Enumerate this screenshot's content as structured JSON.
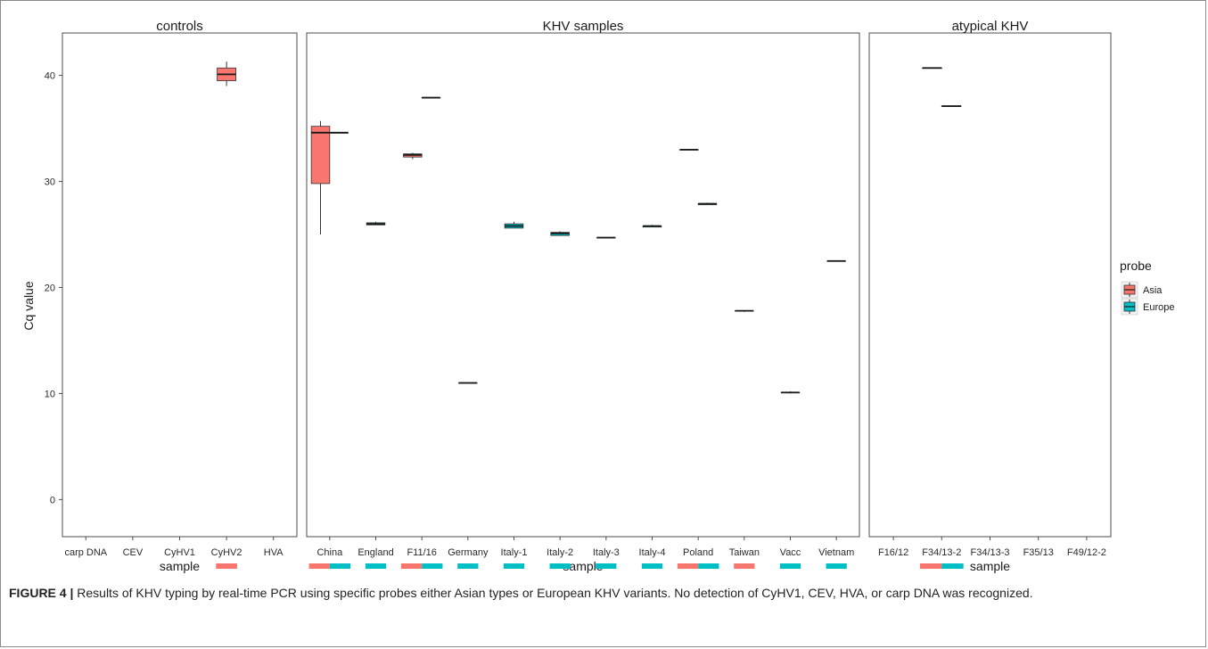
{
  "figure": {
    "caption_label": "FIGURE 4 |",
    "caption_text": " Results of KHV typing by real-time PCR using specific probes either Asian types or European KHV variants.  No detection of CyHV1, CEV, HVA, or carp DNA was recognized."
  },
  "chart_data": {
    "type": "box",
    "ylabel": "Cq value",
    "xlabel": "sample",
    "ylim": [
      -3.5,
      44
    ],
    "yticks": [
      0,
      10,
      20,
      30,
      40
    ],
    "grid": true,
    "legend": {
      "title": "probe",
      "placement": "right",
      "entries": [
        {
          "name": "Asia",
          "color": "#F8766D"
        },
        {
          "name": "Europe",
          "color": "#00BFC4"
        }
      ]
    },
    "panels": [
      {
        "title": "controls",
        "categories": [
          "carp DNA",
          "CEV",
          "CyHV1",
          "CyHV2",
          "HVA"
        ],
        "boxes": [
          {
            "category": "CyHV2",
            "probe": "Asia",
            "min": 39.0,
            "q1": 39.5,
            "median": 40.1,
            "q3": 40.7,
            "max": 41.3
          }
        ]
      },
      {
        "title": "KHV samples",
        "categories": [
          "China",
          "England",
          "F11/16",
          "Germany",
          "Italy-1",
          "Italy-2",
          "Italy-3",
          "Italy-4",
          "Poland",
          "Taiwan",
          "Vacc",
          "Vietnam"
        ],
        "boxes": [
          {
            "category": "China",
            "probe": "Asia",
            "min": 25.0,
            "q1": 29.8,
            "median": 34.6,
            "q3": 35.2,
            "max": 35.7
          },
          {
            "category": "China",
            "probe": "Europe",
            "min": 34.6,
            "q1": 34.6,
            "median": 34.6,
            "q3": 34.6,
            "max": 34.6
          },
          {
            "category": "England",
            "probe": "Europe",
            "min": 25.9,
            "q1": 25.9,
            "median": 26.0,
            "q3": 26.1,
            "max": 26.2
          },
          {
            "category": "F11/16",
            "probe": "Asia",
            "min": 32.1,
            "q1": 32.3,
            "median": 32.5,
            "q3": 32.6,
            "max": 32.7
          },
          {
            "category": "F11/16",
            "probe": "Europe",
            "min": 37.9,
            "q1": 37.9,
            "median": 37.9,
            "q3": 37.9,
            "max": 37.9
          },
          {
            "category": "Germany",
            "probe": "Europe",
            "min": 11.0,
            "q1": 11.0,
            "median": 11.0,
            "q3": 11.0,
            "max": 11.0
          },
          {
            "category": "Italy-1",
            "probe": "Europe",
            "min": 25.6,
            "q1": 25.6,
            "median": 25.8,
            "q3": 26.0,
            "max": 26.2
          },
          {
            "category": "Italy-2",
            "probe": "Europe",
            "min": 24.9,
            "q1": 24.9,
            "median": 25.1,
            "q3": 25.2,
            "max": 25.3
          },
          {
            "category": "Italy-3",
            "probe": "Europe",
            "min": 24.7,
            "q1": 24.7,
            "median": 24.7,
            "q3": 24.7,
            "max": 24.7
          },
          {
            "category": "Italy-4",
            "probe": "Europe",
            "min": 25.7,
            "q1": 25.7,
            "median": 25.8,
            "q3": 25.8,
            "max": 25.9
          },
          {
            "category": "Poland",
            "probe": "Asia",
            "min": 33.0,
            "q1": 33.0,
            "median": 33.0,
            "q3": 33.0,
            "max": 33.0
          },
          {
            "category": "Poland",
            "probe": "Europe",
            "min": 27.8,
            "q1": 27.8,
            "median": 27.9,
            "q3": 27.9,
            "max": 28.0
          },
          {
            "category": "Taiwan",
            "probe": "Asia",
            "min": 17.7,
            "q1": 17.8,
            "median": 17.8,
            "q3": 17.8,
            "max": 17.8
          },
          {
            "category": "Vacc",
            "probe": "Europe",
            "min": 10.0,
            "q1": 10.1,
            "median": 10.1,
            "q3": 10.1,
            "max": 10.2
          },
          {
            "category": "Vietnam",
            "probe": "Europe",
            "min": 22.5,
            "q1": 22.5,
            "median": 22.5,
            "q3": 22.5,
            "max": 22.5
          }
        ]
      },
      {
        "title": "atypical KHV",
        "categories": [
          "F16/12",
          "F34/13-2",
          "F34/13-3",
          "F35/13",
          "F49/12-2"
        ],
        "boxes": [
          {
            "category": "F34/13-2",
            "probe": "Asia",
            "min": 40.7,
            "q1": 40.7,
            "median": 40.7,
            "q3": 40.7,
            "max": 40.7
          },
          {
            "category": "F34/13-2",
            "probe": "Europe",
            "min": 37.1,
            "q1": 37.1,
            "median": 37.1,
            "q3": 37.1,
            "max": 37.1
          }
        ]
      }
    ]
  }
}
